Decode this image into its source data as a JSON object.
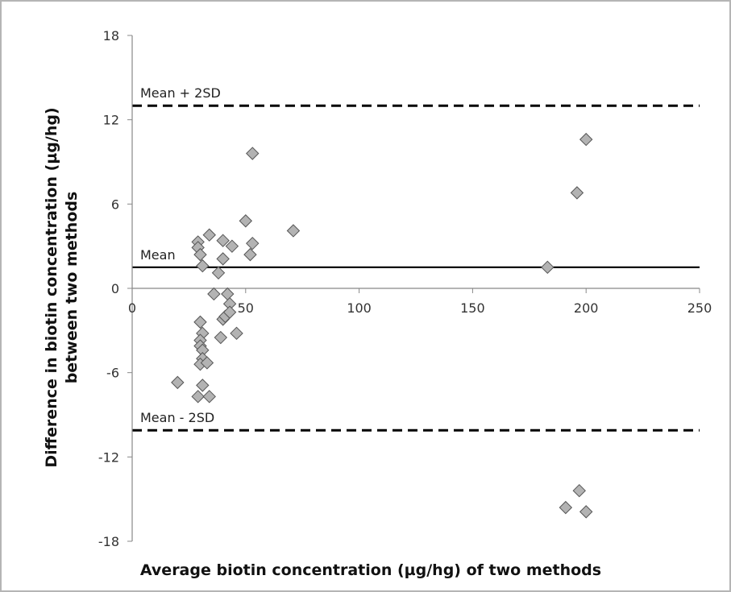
{
  "chart_data": {
    "type": "scatter",
    "xlabel": "Average biotin concentration (µg/hg) of two methods",
    "ylabel_line1": "Difference in biotin concentration (µg/hg)",
    "ylabel_line2": "between two methods",
    "xlim": [
      0,
      250
    ],
    "ylim": [
      -18,
      18
    ],
    "x_ticks": [
      0,
      50,
      100,
      150,
      200,
      250
    ],
    "y_ticks": [
      18,
      12,
      6,
      0,
      -6,
      -12,
      -18
    ],
    "grid": false,
    "marker": "diamond",
    "marker_color": "#b3b3b3",
    "reference_lines": [
      {
        "label": "Mean + 2SD",
        "y": 13,
        "style": "dashed"
      },
      {
        "label": "Mean",
        "y": 1.5,
        "style": "solid"
      },
      {
        "label": "Mean - 2SD",
        "y": -10.1,
        "style": "dashed"
      }
    ],
    "points": [
      {
        "x": 20,
        "y": -6.7
      },
      {
        "x": 29,
        "y": 3.3
      },
      {
        "x": 29,
        "y": 2.9
      },
      {
        "x": 30,
        "y": 2.4
      },
      {
        "x": 31,
        "y": 1.6
      },
      {
        "x": 30,
        "y": -2.4
      },
      {
        "x": 31,
        "y": -3.2
      },
      {
        "x": 30,
        "y": -3.7
      },
      {
        "x": 30,
        "y": -4.1
      },
      {
        "x": 31,
        "y": -4.4
      },
      {
        "x": 31,
        "y": -5.0
      },
      {
        "x": 30,
        "y": -5.4
      },
      {
        "x": 33,
        "y": -5.3
      },
      {
        "x": 31,
        "y": -6.9
      },
      {
        "x": 29,
        "y": -7.7
      },
      {
        "x": 34,
        "y": -7.7
      },
      {
        "x": 34,
        "y": 3.8
      },
      {
        "x": 36,
        "y": -0.4
      },
      {
        "x": 38,
        "y": 1.1
      },
      {
        "x": 40,
        "y": 3.4
      },
      {
        "x": 40,
        "y": 2.1
      },
      {
        "x": 39,
        "y": -3.5
      },
      {
        "x": 40,
        "y": -2.2
      },
      {
        "x": 41,
        "y": -2.0
      },
      {
        "x": 42,
        "y": -0.4
      },
      {
        "x": 43,
        "y": -1.1
      },
      {
        "x": 43,
        "y": -1.7
      },
      {
        "x": 44,
        "y": 3.0
      },
      {
        "x": 46,
        "y": -3.2
      },
      {
        "x": 50,
        "y": 4.8
      },
      {
        "x": 52,
        "y": 2.4
      },
      {
        "x": 53,
        "y": 3.2
      },
      {
        "x": 53,
        "y": 9.6
      },
      {
        "x": 71,
        "y": 4.1
      },
      {
        "x": 183,
        "y": 1.5
      },
      {
        "x": 196,
        "y": 6.8
      },
      {
        "x": 200,
        "y": 10.6
      },
      {
        "x": 191,
        "y": -15.6
      },
      {
        "x": 197,
        "y": -14.4
      },
      {
        "x": 200,
        "y": -15.9
      }
    ]
  }
}
